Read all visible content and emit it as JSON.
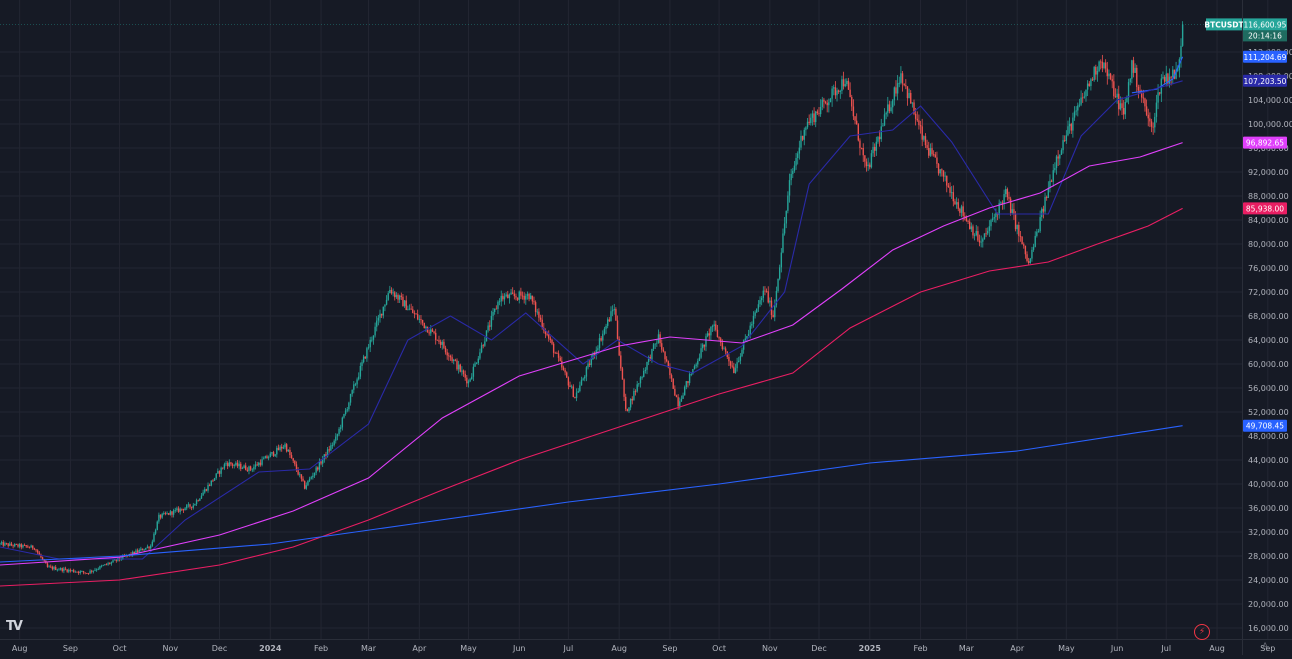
{
  "symbol": {
    "ticker": "BTCUSDT",
    "price": "116,600.95",
    "countdown": "20:14:16"
  },
  "price_axis": {
    "ticks": [
      "112,000.00",
      "108,000.00",
      "104,000.00",
      "100,000.00",
      "96,000.00",
      "92,000.00",
      "88,000.00",
      "84,000.00",
      "80,000.00",
      "76,000.00",
      "72,000.00",
      "68,000.00",
      "64,000.00",
      "60,000.00",
      "56,000.00",
      "52,000.00",
      "48,000.00",
      "44,000.00",
      "40,000.00",
      "36,000.00",
      "32,000.00",
      "28,000.00",
      "24,000.00",
      "20,000.00",
      "16,000.00"
    ]
  },
  "time_axis": {
    "labels": [
      "Aug",
      "Sep",
      "Oct",
      "Nov",
      "Dec",
      "2024",
      "Feb",
      "Mar",
      "Apr",
      "May",
      "Jun",
      "Jul",
      "Aug",
      "Sep",
      "Oct",
      "Nov",
      "Dec",
      "2025",
      "Feb",
      "Mar",
      "Apr",
      "May",
      "Jun",
      "Jul",
      "Aug",
      "Sep"
    ]
  },
  "ma_badges": [
    {
      "label": "111,204.69",
      "color": "#2962ff"
    },
    {
      "label": "107,203.50",
      "color": "#2a2aa8"
    },
    {
      "label": "96,892.65",
      "color": "#e040fb"
    },
    {
      "label": "85,938.00",
      "color": "#e91e63"
    },
    {
      "label": "49,708.45",
      "color": "#2962ff"
    }
  ],
  "colors": {
    "background": "#161a25",
    "up_candle": "#26a69a",
    "down_candle": "#ef5350",
    "grid": "#232632"
  },
  "chart_data": {
    "type": "candlestick",
    "title": "BTCUSDT",
    "timeframe": "daily",
    "x_range": [
      "2023-07-20",
      "2025-07-11"
    ],
    "ylim": [
      14000,
      118000
    ],
    "grid": true,
    "last_price": 116600.95,
    "price_anchors": [
      [
        "2023-07-20",
        30000
      ],
      [
        "2023-08-10",
        29400
      ],
      [
        "2023-08-18",
        26100
      ],
      [
        "2023-09-11",
        25200
      ],
      [
        "2023-10-01",
        27500
      ],
      [
        "2023-10-20",
        29700
      ],
      [
        "2023-10-25",
        34500
      ],
      [
        "2023-11-15",
        36500
      ],
      [
        "2023-12-05",
        43500
      ],
      [
        "2023-12-20",
        42500
      ],
      [
        "2024-01-10",
        46500
      ],
      [
        "2024-01-22",
        39500
      ],
      [
        "2024-02-10",
        47500
      ],
      [
        "2024-02-28",
        61500
      ],
      [
        "2024-03-14",
        72500
      ],
      [
        "2024-04-13",
        64000
      ],
      [
        "2024-05-01",
        57000
      ],
      [
        "2024-05-20",
        71000
      ],
      [
        "2024-06-07",
        71500
      ],
      [
        "2024-07-05",
        54500
      ],
      [
        "2024-07-29",
        69500
      ],
      [
        "2024-08-05",
        52000
      ],
      [
        "2024-08-25",
        64500
      ],
      [
        "2024-09-06",
        53500
      ],
      [
        "2024-09-27",
        66500
      ],
      [
        "2024-10-10",
        59000
      ],
      [
        "2024-10-29",
        72500
      ],
      [
        "2024-11-03",
        68000
      ],
      [
        "2024-11-13",
        90000
      ],
      [
        "2024-11-22",
        99500
      ],
      [
        "2024-12-17",
        107500
      ],
      [
        "2024-12-30",
        92000
      ],
      [
        "2025-01-20",
        108500
      ],
      [
        "2025-02-03",
        97000
      ],
      [
        "2025-02-25",
        86000
      ],
      [
        "2025-03-10",
        80000
      ],
      [
        "2025-03-25",
        88500
      ],
      [
        "2025-04-08",
        76500
      ],
      [
        "2025-04-25",
        94500
      ],
      [
        "2025-05-22",
        111000
      ],
      [
        "2025-06-05",
        101500
      ],
      [
        "2025-06-10",
        110000
      ],
      [
        "2025-06-22",
        99000
      ],
      [
        "2025-06-28",
        107500
      ],
      [
        "2025-07-08",
        108500
      ],
      [
        "2025-07-11",
        116600
      ]
    ],
    "moving_averages": [
      {
        "color": "#2962ff",
        "current": 111204.69,
        "points": [
          [
            "2025-06-10",
            105200
          ],
          [
            "2025-06-25",
            105800
          ],
          [
            "2025-07-05",
            107500
          ],
          [
            "2025-07-11",
            111204.69
          ]
        ]
      },
      {
        "color": "#2a2aa8",
        "current": 107203.5,
        "points": [
          [
            "2023-07-20",
            29500
          ],
          [
            "2023-08-25",
            27500
          ],
          [
            "2023-10-15",
            27500
          ],
          [
            "2023-11-10",
            34000
          ],
          [
            "2023-12-25",
            42000
          ],
          [
            "2024-01-25",
            42500
          ],
          [
            "2024-03-01",
            50000
          ],
          [
            "2024-03-25",
            64000
          ],
          [
            "2024-04-20",
            68000
          ],
          [
            "2024-05-15",
            64000
          ],
          [
            "2024-06-05",
            68500
          ],
          [
            "2024-07-10",
            60000
          ],
          [
            "2024-07-31",
            64000
          ],
          [
            "2024-08-25",
            60000
          ],
          [
            "2024-09-15",
            58500
          ],
          [
            "2024-10-15",
            63000
          ],
          [
            "2024-11-10",
            72000
          ],
          [
            "2024-11-25",
            90000
          ],
          [
            "2024-12-20",
            98000
          ],
          [
            "2025-01-15",
            99000
          ],
          [
            "2025-02-01",
            103000
          ],
          [
            "2025-02-20",
            97000
          ],
          [
            "2025-03-20",
            85000
          ],
          [
            "2025-04-20",
            85000
          ],
          [
            "2025-05-10",
            98000
          ],
          [
            "2025-06-01",
            104000
          ],
          [
            "2025-07-11",
            107203.5
          ]
        ]
      },
      {
        "color": "#e040fb",
        "current": 96892.65,
        "points": [
          [
            "2023-07-20",
            26500
          ],
          [
            "2023-10-01",
            27800
          ],
          [
            "2023-12-01",
            31500
          ],
          [
            "2024-01-15",
            35500
          ],
          [
            "2024-03-01",
            41000
          ],
          [
            "2024-04-15",
            51000
          ],
          [
            "2024-06-01",
            58000
          ],
          [
            "2024-08-01",
            63000
          ],
          [
            "2024-09-01",
            64500
          ],
          [
            "2024-10-15",
            63500
          ],
          [
            "2024-11-15",
            66500
          ],
          [
            "2024-12-15",
            72500
          ],
          [
            "2025-01-15",
            79000
          ],
          [
            "2025-02-15",
            83000
          ],
          [
            "2025-03-15",
            86000
          ],
          [
            "2025-04-15",
            88500
          ],
          [
            "2025-05-15",
            93000
          ],
          [
            "2025-06-15",
            94500
          ],
          [
            "2025-07-11",
            96892.65
          ]
        ]
      },
      {
        "color": "#e91e63",
        "current": 85938.0,
        "points": [
          [
            "2023-07-20",
            23000
          ],
          [
            "2023-10-01",
            24000
          ],
          [
            "2023-12-01",
            26500
          ],
          [
            "2024-01-15",
            29500
          ],
          [
            "2024-03-01",
            34000
          ],
          [
            "2024-04-15",
            39000
          ],
          [
            "2024-06-01",
            44000
          ],
          [
            "2024-08-01",
            49500
          ],
          [
            "2024-10-01",
            55000
          ],
          [
            "2024-11-15",
            58500
          ],
          [
            "2024-12-20",
            66000
          ],
          [
            "2025-02-01",
            72000
          ],
          [
            "2025-03-15",
            75500
          ],
          [
            "2025-04-20",
            77000
          ],
          [
            "2025-05-20",
            80000
          ],
          [
            "2025-06-20",
            83000
          ],
          [
            "2025-07-11",
            85938.0
          ]
        ]
      },
      {
        "color": "#2962ff",
        "current": 49708.45,
        "points": [
          [
            "2023-07-20",
            27000
          ],
          [
            "2023-10-01",
            28000
          ],
          [
            "2024-01-01",
            30000
          ],
          [
            "2024-04-01",
            33500
          ],
          [
            "2024-07-01",
            37000
          ],
          [
            "2024-10-01",
            40000
          ],
          [
            "2025-01-01",
            43500
          ],
          [
            "2025-04-01",
            45500
          ],
          [
            "2025-07-11",
            49708.45
          ]
        ]
      }
    ]
  }
}
